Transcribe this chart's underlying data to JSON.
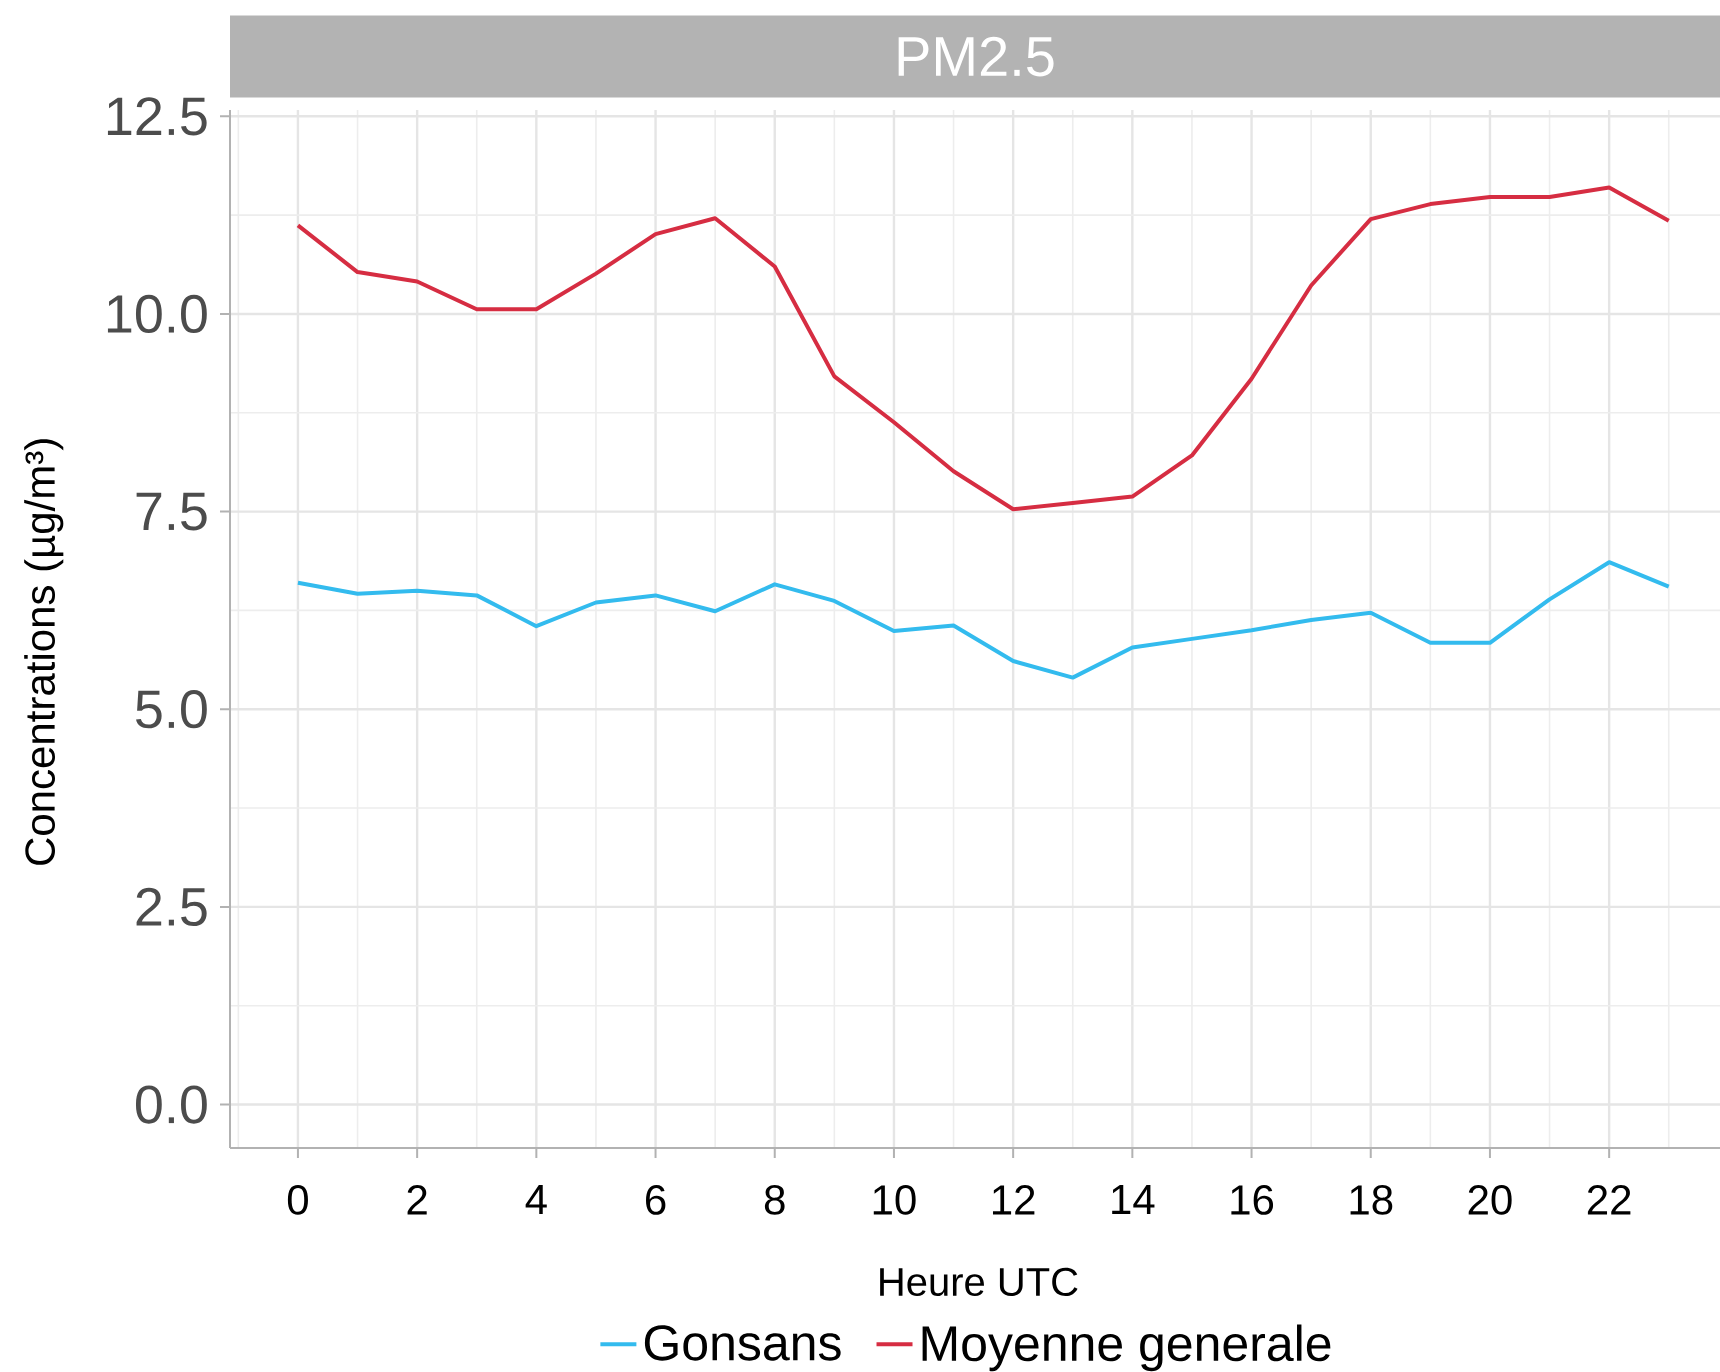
{
  "chart_data": {
    "type": "line",
    "title": "PM2.5",
    "xlabel": "Heure UTC",
    "ylabel": "Concentrations (µg/m³)",
    "x": [
      0,
      1,
      2,
      3,
      4,
      5,
      6,
      7,
      8,
      9,
      10,
      11,
      12,
      13,
      14,
      15,
      16,
      17,
      18,
      19,
      20,
      21,
      22,
      23
    ],
    "series": [
      {
        "name": "Gonsans",
        "color": "#33bbee",
        "values": [
          6.6,
          6.46,
          6.5,
          6.44,
          6.05,
          6.35,
          6.44,
          6.24,
          6.58,
          6.37,
          5.99,
          6.06,
          5.61,
          5.4,
          5.78,
          5.89,
          6.0,
          6.13,
          6.22,
          5.84,
          5.84,
          6.39,
          6.86,
          6.55
        ]
      },
      {
        "name": "Moyenne generale",
        "color": "#d62d42",
        "values": [
          11.12,
          10.53,
          10.41,
          10.06,
          10.06,
          10.51,
          11.01,
          11.21,
          10.6,
          9.21,
          8.63,
          8.01,
          7.53,
          7.61,
          7.69,
          8.21,
          9.18,
          10.36,
          11.2,
          11.39,
          11.48,
          11.48,
          11.6,
          11.18
        ]
      }
    ],
    "xlim": [
      -1.14,
      23.86
    ],
    "ylim": [
      -0.55,
      12.58
    ],
    "xticks": [
      0,
      2,
      4,
      6,
      8,
      10,
      12,
      14,
      16,
      18,
      20,
      22
    ],
    "yticks": [
      {
        "value": 0,
        "label": "0.0"
      },
      2.5,
      {
        "value": 5,
        "label": "5.0"
      },
      7.5,
      {
        "value": 10,
        "label": "10.0"
      },
      12.5
    ],
    "grid": true,
    "legend": "bottom"
  }
}
